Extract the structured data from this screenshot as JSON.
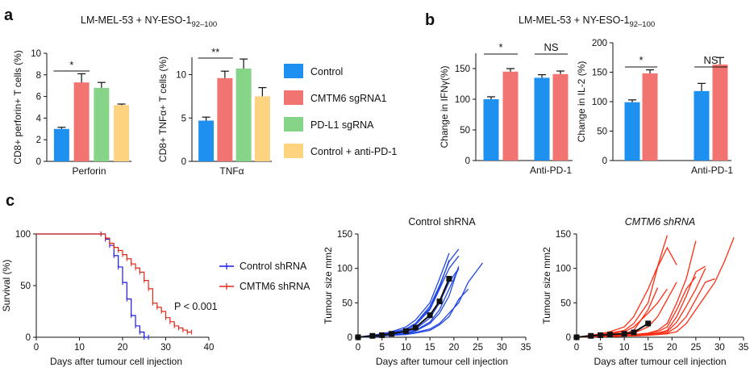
{
  "panels": {
    "a": "a",
    "b": "b",
    "c": "c"
  },
  "colors": {
    "blue": "#1e90f0",
    "red": "#f27470",
    "green": "#86d488",
    "yellow": "#fdd380",
    "black": "#111111",
    "km_blue": "#1a1ae6",
    "km_red": "#e0281a",
    "tumour_blue": "#2146e6",
    "tumour_red": "#ff2c14"
  },
  "legend_a": [
    {
      "label": "Control",
      "color": "#1e90f0"
    },
    {
      "label": "CMTM6 sgRNA1",
      "color": "#f27470"
    },
    {
      "label": "PD-L1 sgRNA",
      "color": "#86d488"
    },
    {
      "label": "Control + anti-PD-1",
      "color": "#fdd380"
    }
  ],
  "chart_data": [
    {
      "id": "a-perforin",
      "type": "bar",
      "title": "LM-MEL-53 + NY-ESO-1",
      "title_sub": "92–100",
      "ylabel": "CD8+ perforin+ T cells (%)",
      "xlabel": "Perforin",
      "ylim": [
        0,
        10
      ],
      "yticks": [
        0,
        2,
        4,
        6,
        8,
        10
      ],
      "categories": [
        "Control",
        "CMTM6 sgRNA1",
        "PD-L1 sgRNA",
        "Control + anti-PD-1"
      ],
      "values": [
        3.0,
        7.3,
        6.8,
        5.2
      ],
      "errors": [
        0.15,
        0.8,
        0.5,
        0.1
      ],
      "significance": [
        {
          "label": "*",
          "from": 0,
          "to": 1
        }
      ]
    },
    {
      "id": "a-tnfa",
      "type": "bar",
      "ylabel": "CD8+ TNFα+ T cells (%)",
      "xlabel": "TNFα",
      "ylim": [
        0,
        12
      ],
      "yticks": [
        0,
        5,
        10
      ],
      "categories": [
        "Control",
        "CMTM6 sgRNA1",
        "PD-L1 sgRNA",
        "Control + anti-PD-1"
      ],
      "values": [
        4.7,
        9.6,
        10.7,
        7.5
      ],
      "errors": [
        0.4,
        0.8,
        1.1,
        1.0
      ],
      "significance": [
        {
          "label": "**",
          "from": 0,
          "to": 1
        }
      ]
    },
    {
      "id": "b-ifng",
      "type": "bar",
      "title": "LM-MEL-53 + NY-ESO-1",
      "title_sub": "92–100",
      "ylabel": "Change in IFNγ(%)",
      "xlabel": "Anti-PD-1",
      "ylim": [
        0,
        175
      ],
      "yticks": [
        0,
        50,
        100,
        150
      ],
      "groups": [
        {
          "values": [
            100,
            145
          ],
          "errors": [
            4,
            5
          ]
        },
        {
          "values": [
            135,
            141
          ],
          "errors": [
            5,
            5
          ]
        }
      ],
      "series": [
        "Control",
        "CMTM6 sgRNA1"
      ],
      "significance": [
        {
          "label": "*",
          "group": 0
        },
        {
          "label": "NS",
          "group": 1
        }
      ]
    },
    {
      "id": "b-il2",
      "type": "bar",
      "ylabel": "Change in IL-2 (%)",
      "xlabel": "Anti-PD-1",
      "ylim": [
        0,
        200
      ],
      "yticks": [
        0,
        50,
        100,
        150,
        200
      ],
      "groups": [
        {
          "values": [
            99,
            148
          ],
          "errors": [
            4,
            6
          ]
        },
        {
          "values": [
            118,
            163
          ],
          "errors": [
            13,
            12
          ]
        }
      ],
      "series": [
        "Control",
        "CMTM6 sgRNA1"
      ],
      "significance": [
        {
          "label": "*",
          "group": 0
        },
        {
          "label": "NS",
          "group": 1
        }
      ]
    },
    {
      "id": "c-survival",
      "type": "line",
      "ylabel": "Survival (%)",
      "xlabel": "Days after tumour cell injection",
      "xlim": [
        0,
        40
      ],
      "ylim": [
        0,
        100
      ],
      "xticks": [
        0,
        10,
        20,
        30,
        40
      ],
      "yticks": [
        0,
        50,
        100
      ],
      "annotation": "P < 0.001",
      "series": [
        {
          "name": "Control shRNA",
          "x": [
            0,
            15,
            16,
            17,
            18,
            19,
            20,
            21,
            22,
            23,
            24,
            25,
            26
          ],
          "y": [
            100,
            100,
            95,
            89,
            79,
            68,
            53,
            37,
            21,
            11,
            5,
            0,
            0
          ]
        },
        {
          "name": "CMTM6 shRNA",
          "x": [
            0,
            15,
            16,
            17,
            18,
            19,
            20,
            21,
            22,
            23,
            24,
            25,
            26,
            27,
            28,
            29,
            30,
            31,
            32,
            33,
            34,
            35,
            36
          ],
          "y": [
            100,
            100,
            96,
            91,
            87,
            84,
            80,
            76,
            71,
            67,
            63,
            55,
            47,
            33,
            29,
            25,
            19,
            15,
            11,
            9,
            7,
            5,
            5
          ]
        }
      ]
    },
    {
      "id": "c-control",
      "type": "line",
      "title": "Control shRNA",
      "ylabel": "Tumour size mm2",
      "xlabel": "Days after tumour cell injection",
      "xlim": [
        0,
        35
      ],
      "ylim": [
        0,
        150
      ],
      "xticks": [
        0,
        5,
        10,
        15,
        20,
        25,
        30,
        35
      ],
      "yticks": [
        0,
        50,
        100,
        150
      ],
      "mean": {
        "x": [
          0,
          3,
          5,
          7,
          10,
          12,
          15,
          17,
          19
        ],
        "y": [
          0,
          2,
          3,
          5,
          9,
          14,
          32,
          52,
          85
        ]
      },
      "series": [
        {
          "x": [
            0,
            3,
            5,
            7,
            10,
            12,
            15,
            17,
            19,
            21
          ],
          "y": [
            0,
            2,
            4,
            6,
            12,
            20,
            45,
            75,
            110,
            128
          ]
        },
        {
          "x": [
            0,
            3,
            5,
            7,
            10,
            12,
            15,
            17,
            19,
            21
          ],
          "y": [
            0,
            2,
            3,
            5,
            10,
            18,
            40,
            70,
            100,
            118
          ]
        },
        {
          "x": [
            0,
            3,
            5,
            7,
            10,
            12,
            15,
            17,
            19
          ],
          "y": [
            0,
            3,
            5,
            8,
            15,
            25,
            50,
            85,
            122
          ]
        },
        {
          "x": [
            0,
            3,
            5,
            7,
            10,
            12,
            15,
            17,
            19
          ],
          "y": [
            0,
            2,
            4,
            7,
            12,
            20,
            42,
            72,
            112
          ]
        },
        {
          "x": [
            0,
            3,
            5,
            7,
            10,
            12,
            15,
            17,
            19,
            21
          ],
          "y": [
            0,
            1,
            3,
            4,
            8,
            12,
            28,
            50,
            80,
            100
          ]
        },
        {
          "x": [
            0,
            3,
            5,
            7,
            10,
            12,
            15,
            17,
            19,
            21
          ],
          "y": [
            0,
            1,
            2,
            4,
            6,
            10,
            22,
            40,
            70,
            100
          ]
        },
        {
          "x": [
            0,
            3,
            5,
            7,
            10,
            12,
            15,
            17,
            19,
            21
          ],
          "y": [
            0,
            1,
            2,
            3,
            5,
            9,
            20,
            35,
            60,
            103
          ]
        },
        {
          "x": [
            0,
            3,
            5,
            7,
            10,
            12,
            15,
            17,
            19,
            21,
            23,
            26
          ],
          "y": [
            0,
            1,
            2,
            3,
            4,
            7,
            12,
            20,
            35,
            50,
            80,
            108
          ]
        },
        {
          "x": [
            0,
            3,
            5,
            7,
            10,
            12,
            15,
            17,
            19,
            21,
            23
          ],
          "y": [
            0,
            1,
            2,
            3,
            4,
            6,
            10,
            18,
            30,
            55,
            70
          ]
        }
      ]
    },
    {
      "id": "c-cmtm6",
      "type": "line",
      "title": "CMTM6 shRNA",
      "ylabel": "Tumour size mm2",
      "xlabel": "Days after tumour cell injection",
      "xlim": [
        0,
        35
      ],
      "ylim": [
        0,
        150
      ],
      "xticks": [
        0,
        5,
        10,
        15,
        20,
        25,
        30,
        35
      ],
      "yticks": [
        0,
        50,
        100,
        150
      ],
      "mean": {
        "x": [
          0,
          3,
          5,
          7,
          10,
          12,
          15
        ],
        "y": [
          0,
          2,
          3,
          4,
          5,
          7,
          20
        ]
      },
      "series": [
        {
          "x": [
            0,
            3,
            5,
            7,
            10,
            12,
            15,
            17,
            19,
            21
          ],
          "y": [
            0,
            2,
            4,
            6,
            10,
            20,
            50,
            102,
            130,
            105
          ]
        },
        {
          "x": [
            0,
            3,
            5,
            7,
            10,
            12,
            15,
            17,
            19
          ],
          "y": [
            0,
            3,
            5,
            8,
            15,
            30,
            70,
            103,
            148
          ]
        },
        {
          "x": [
            0,
            3,
            5,
            7,
            10,
            12,
            15,
            17,
            19
          ],
          "y": [
            0,
            2,
            3,
            5,
            8,
            15,
            35,
            50,
            70
          ]
        },
        {
          "x": [
            0,
            3,
            5,
            7,
            10,
            12,
            15,
            17
          ],
          "y": [
            0,
            1,
            2,
            3,
            5,
            10,
            40,
            72
          ]
        },
        {
          "x": [
            0,
            3,
            5,
            7,
            10,
            12,
            15,
            17,
            19,
            21
          ],
          "y": [
            0,
            1,
            2,
            3,
            4,
            6,
            15,
            30,
            55,
            80
          ]
        },
        {
          "x": [
            0,
            3,
            5,
            7,
            10,
            12,
            15,
            17,
            19,
            21,
            23,
            25
          ],
          "y": [
            0,
            1,
            2,
            2,
            3,
            4,
            6,
            10,
            20,
            50,
            85,
            140
          ]
        },
        {
          "x": [
            0,
            3,
            5,
            7,
            10,
            12,
            15,
            17,
            19,
            21,
            23,
            25
          ],
          "y": [
            0,
            1,
            1,
            2,
            3,
            4,
            5,
            8,
            15,
            40,
            70,
            88
          ]
        },
        {
          "x": [
            0,
            3,
            5,
            7,
            10,
            12,
            15,
            17,
            19,
            21,
            23,
            25,
            27
          ],
          "y": [
            0,
            1,
            1,
            2,
            2,
            3,
            4,
            6,
            10,
            30,
            60,
            95,
            103
          ]
        },
        {
          "x": [
            0,
            3,
            5,
            7,
            10,
            12,
            15,
            17,
            19,
            21,
            23,
            25,
            27
          ],
          "y": [
            0,
            1,
            1,
            2,
            2,
            3,
            4,
            5,
            8,
            22,
            45,
            70,
            100
          ]
        },
        {
          "x": [
            0,
            3,
            5,
            7,
            10,
            12,
            15,
            17,
            19,
            21,
            23,
            25,
            27,
            29
          ],
          "y": [
            0,
            1,
            1,
            1,
            2,
            2,
            3,
            4,
            6,
            15,
            30,
            55,
            80,
            85
          ]
        },
        {
          "x": [
            0,
            3,
            5,
            7,
            10,
            12,
            15,
            17,
            19,
            21,
            23,
            25,
            27,
            29,
            31,
            33
          ],
          "y": [
            0,
            1,
            1,
            1,
            2,
            2,
            3,
            4,
            5,
            8,
            20,
            40,
            60,
            80,
            110,
            145
          ]
        }
      ]
    }
  ]
}
